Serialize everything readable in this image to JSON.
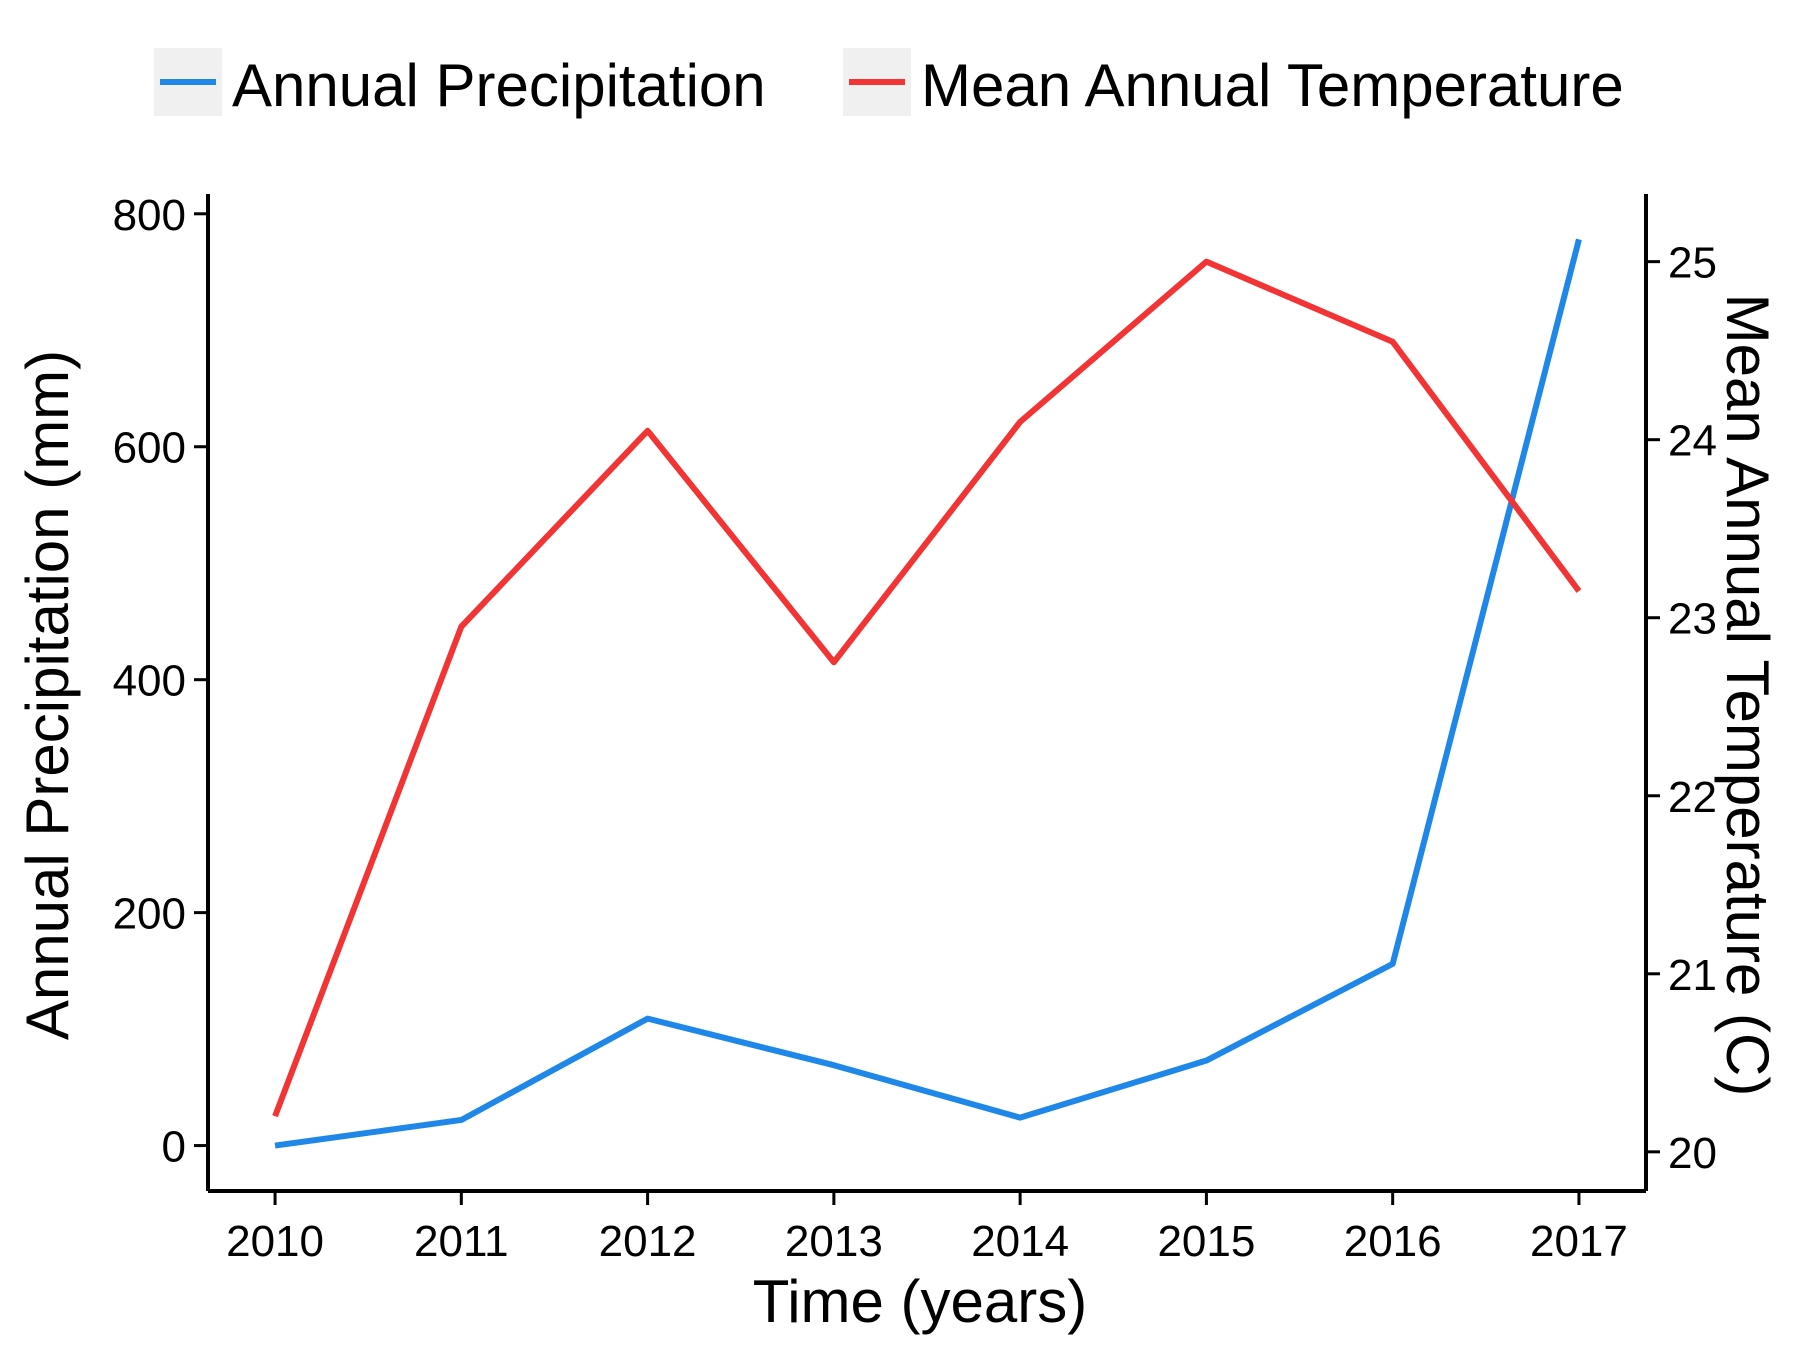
{
  "chart_data": {
    "type": "line",
    "x": [
      2010,
      2011,
      2012,
      2013,
      2014,
      2015,
      2016,
      2017
    ],
    "xlabel": "Time (years)",
    "ylabel": "Annual Precipitation (mm)",
    "y2label": "Mean Annual Temperature (C)",
    "xlim": [
      2009.64,
      2017.36
    ],
    "ylim": [
      -39,
      817
    ],
    "y2lim": [
      19.78,
      25.38
    ],
    "x_ticks": [
      2010,
      2011,
      2012,
      2013,
      2014,
      2015,
      2016,
      2017
    ],
    "y_ticks": [
      0,
      200,
      400,
      600,
      800
    ],
    "y2_ticks": [
      20,
      21,
      22,
      23,
      24,
      25
    ],
    "grid": false,
    "legend_position": "top",
    "series": [
      {
        "name": "Annual Precipitation",
        "axis": "left",
        "color": "#1f87e8",
        "values": [
          0,
          22,
          109,
          69,
          24,
          73,
          156,
          778
        ]
      },
      {
        "name": "Mean Annual Temperature",
        "axis": "right",
        "color": "#f23434",
        "values": [
          20.2,
          22.95,
          24.05,
          22.75,
          24.1,
          25.0,
          24.55,
          23.15
        ]
      }
    ]
  }
}
